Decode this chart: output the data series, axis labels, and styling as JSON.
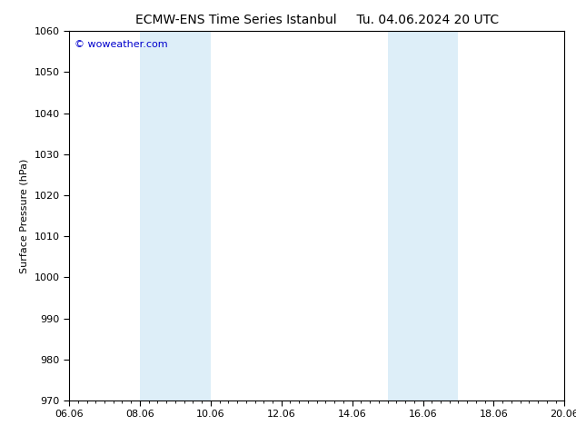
{
  "title_left": "ECMW-ENS Time Series Istanbul",
  "title_right": "Tu. 04.06.2024 20 UTC",
  "ylabel": "Surface Pressure (hPa)",
  "ylim": [
    970,
    1060
  ],
  "ytick_step": 10,
  "xlim_start": 0,
  "xlim_end": 14,
  "xtick_labels": [
    "06.06",
    "08.06",
    "10.06",
    "12.06",
    "14.06",
    "16.06",
    "18.06",
    "20.06"
  ],
  "xtick_positions": [
    0,
    2,
    4,
    6,
    8,
    10,
    12,
    14
  ],
  "shaded_bands": [
    {
      "x_start": 2,
      "x_end": 4,
      "color": "#ddeef8"
    },
    {
      "x_start": 9,
      "x_end": 11,
      "color": "#ddeef8"
    }
  ],
  "watermark_text": "© woweather.com",
  "watermark_color": "#0000cc",
  "background_color": "#ffffff",
  "plot_bg_color": "#ffffff",
  "title_fontsize": 10,
  "axis_label_fontsize": 8,
  "tick_fontsize": 8,
  "fig_width": 6.34,
  "fig_height": 4.9,
  "dpi": 100
}
